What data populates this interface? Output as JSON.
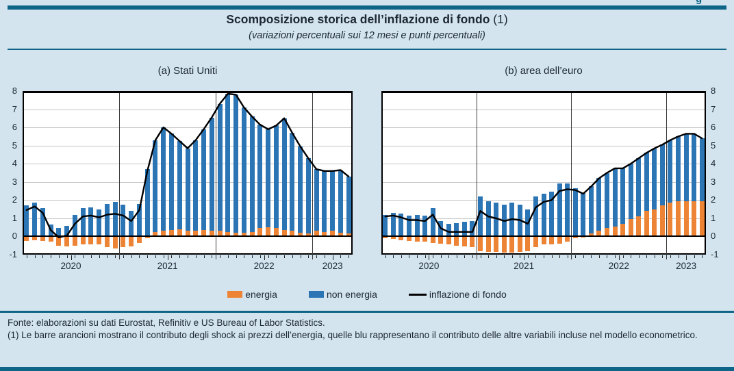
{
  "page": {
    "title": "Scomposizione storica dell’inflazione di fondo",
    "title_ref": " (1)",
    "subtitle": "(variazioni percentuali sui 12 mesi e punti percentuali)",
    "corner_fragment": "g",
    "accent_color": "#0f6587",
    "background_color": "#d3e4ef"
  },
  "legend": [
    {
      "label": "energia",
      "color": "#ed8335",
      "style": "swatch"
    },
    {
      "label": "non energia",
      "color": "#2c75b5",
      "style": "swatch"
    },
    {
      "label": "inflazione di fondo",
      "color": "#000000",
      "style": "line"
    }
  ],
  "footer": {
    "fonte": "Fonte: elaborazioni su dati Eurostat, Refinitiv e US Bureau of Labor Statistics.",
    "nota": "(1) Le barre arancioni mostrano il contributo degli shock ai prezzi dell’energia, quelle blu rappresentano il contributo delle altre variabili incluse nel modello econometrico."
  },
  "chart_data": [
    {
      "title": "(a) Stati Uniti",
      "type": "bar",
      "stacked": true,
      "line_overlay": true,
      "frequency": "monthly",
      "x_start": "2020-01",
      "x_end": "2023-05",
      "x_year_labels": [
        "2020",
        "2021",
        "2022",
        "2023"
      ],
      "ylim": [
        -1,
        8
      ],
      "yticks": [
        8,
        7,
        6,
        5,
        4,
        3,
        2,
        1,
        0,
        -1
      ],
      "grid": "horizontal",
      "series": [
        {
          "name": "energia",
          "color": "#ed8335",
          "values": [
            -0.25,
            -0.2,
            -0.25,
            -0.3,
            -0.5,
            -0.55,
            -0.5,
            -0.45,
            -0.45,
            -0.45,
            -0.6,
            -0.65,
            -0.6,
            -0.55,
            -0.35,
            -0.1,
            0.25,
            0.3,
            0.35,
            0.4,
            0.3,
            0.3,
            0.35,
            0.3,
            0.3,
            0.25,
            0.2,
            0.2,
            0.25,
            0.45,
            0.5,
            0.45,
            0.35,
            0.3,
            0.2,
            0.15,
            0.3,
            0.25,
            0.3,
            0.2,
            0.15
          ]
        },
        {
          "name": "non energia",
          "color": "#2c75b5",
          "values": [
            1.7,
            1.85,
            1.55,
            0.65,
            0.45,
            0.6,
            1.2,
            1.55,
            1.6,
            1.5,
            1.8,
            1.9,
            1.75,
            1.4,
            1.8,
            3.7,
            5.05,
            5.7,
            5.3,
            4.85,
            4.55,
            5.0,
            5.55,
            6.25,
            7.0,
            7.6,
            7.6,
            6.9,
            6.35,
            5.7,
            5.4,
            5.65,
            6.15,
            5.4,
            4.75,
            4.15,
            3.4,
            3.35,
            3.3,
            3.45,
            3.15
          ]
        }
      ],
      "line_series": {
        "name": "inflazione di fondo",
        "color": "#000000",
        "values": [
          1.45,
          1.65,
          1.3,
          0.35,
          -0.05,
          0.05,
          0.7,
          1.1,
          1.15,
          1.05,
          1.2,
          1.25,
          1.15,
          0.85,
          1.45,
          3.6,
          5.3,
          6.0,
          5.65,
          5.25,
          4.85,
          5.3,
          5.9,
          6.55,
          7.3,
          7.85,
          7.8,
          7.1,
          6.6,
          6.15,
          5.9,
          6.1,
          6.5,
          5.7,
          4.95,
          4.3,
          3.7,
          3.6,
          3.6,
          3.65,
          3.3
        ]
      }
    },
    {
      "title": "(b) area dell’euro",
      "type": "bar",
      "stacked": true,
      "line_overlay": true,
      "frequency": "monthly",
      "x_start": "2020-01",
      "x_end": "2023-05",
      "x_year_labels": [
        "2020",
        "2021",
        "2022",
        "2023"
      ],
      "ylim": [
        -1,
        8
      ],
      "yticks": [
        8,
        7,
        6,
        5,
        4,
        3,
        2,
        1,
        0,
        -1
      ],
      "grid": "horizontal",
      "series": [
        {
          "name": "energia",
          "color": "#ed8335",
          "values": [
            -0.1,
            -0.15,
            -0.2,
            -0.25,
            -0.3,
            -0.3,
            -0.35,
            -0.4,
            -0.45,
            -0.5,
            -0.55,
            -0.6,
            -0.8,
            -0.85,
            -0.85,
            -0.9,
            -0.9,
            -0.85,
            -0.8,
            -0.6,
            -0.45,
            -0.45,
            -0.4,
            -0.3,
            -0.1,
            -0.05,
            0.15,
            0.3,
            0.45,
            0.55,
            0.7,
            0.95,
            1.1,
            1.4,
            1.5,
            1.7,
            1.85,
            1.95,
            1.95,
            1.95,
            1.95
          ]
        },
        {
          "name": "non energia",
          "color": "#2c75b5",
          "values": [
            1.2,
            1.3,
            1.25,
            1.15,
            1.2,
            1.15,
            1.55,
            0.85,
            0.7,
            0.75,
            0.8,
            0.85,
            2.2,
            1.95,
            1.85,
            1.75,
            1.85,
            1.75,
            1.5,
            2.2,
            2.35,
            2.45,
            2.9,
            2.9,
            2.65,
            2.4,
            2.6,
            2.9,
            3.05,
            3.2,
            3.05,
            3.05,
            3.2,
            3.2,
            3.35,
            3.35,
            3.45,
            3.55,
            3.7,
            3.7,
            3.45
          ]
        }
      ],
      "line_series": {
        "name": "inflazione di fondo",
        "color": "#000000",
        "values": [
          1.1,
          1.15,
          1.05,
          0.9,
          0.9,
          0.85,
          1.2,
          0.45,
          0.25,
          0.25,
          0.25,
          0.25,
          1.4,
          1.1,
          1.0,
          0.85,
          0.95,
          0.9,
          0.7,
          1.6,
          1.9,
          2.0,
          2.5,
          2.6,
          2.55,
          2.35,
          2.75,
          3.2,
          3.5,
          3.75,
          3.75,
          4.0,
          4.3,
          4.6,
          4.85,
          5.05,
          5.3,
          5.5,
          5.65,
          5.65,
          5.4
        ]
      }
    }
  ]
}
